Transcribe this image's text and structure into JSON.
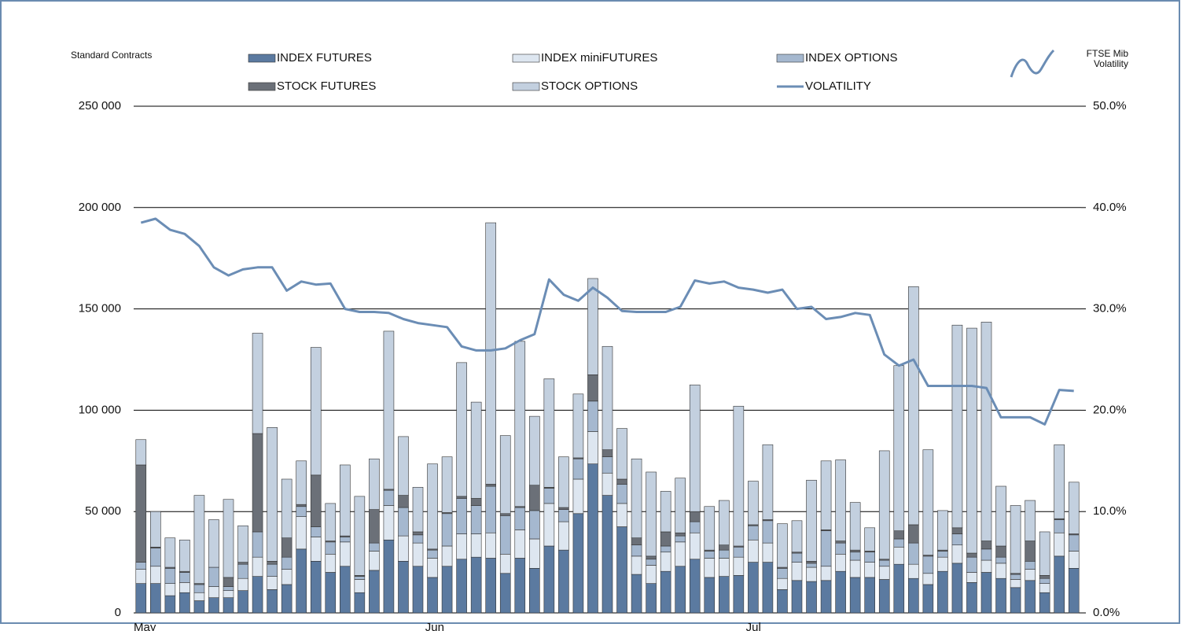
{
  "chart_data": {
    "type": "bar",
    "stacked": true,
    "y_label": "Standard Contracts",
    "y2_label": "FTSE Mib Volatility",
    "categories": [
      "May",
      null,
      null,
      null,
      null,
      null,
      null,
      null,
      null,
      null,
      null,
      null,
      null,
      null,
      null,
      null,
      null,
      null,
      null,
      null,
      "Jun",
      null,
      null,
      null,
      null,
      null,
      null,
      null,
      null,
      null,
      null,
      null,
      null,
      null,
      null,
      null,
      null,
      null,
      null,
      null,
      null,
      null,
      "Jul",
      null,
      null,
      null,
      null,
      null,
      null,
      null,
      null,
      null,
      null,
      null,
      null,
      null,
      null,
      null,
      null,
      null,
      null,
      null,
      null,
      null,
      null
    ],
    "ylim": [
      0,
      250000
    ],
    "yticks": [
      0,
      {
        "value": 50000,
        "label": "50 000"
      },
      {
        "value": 100000,
        "label": "100 000"
      },
      {
        "value": 150000,
        "label": "150 000"
      },
      {
        "value": 200000,
        "label": "200 000"
      },
      {
        "value": 250000,
        "label": "250 000"
      }
    ],
    "y2lim": [
      0,
      50
    ],
    "y2ticks": [
      {
        "value": 0,
        "label": "0.0%"
      },
      {
        "value": 10,
        "label": "10.0%"
      },
      {
        "value": 20,
        "label": "20.0%"
      },
      {
        "value": 30,
        "label": "30.0%"
      },
      {
        "value": 40,
        "label": "40.0%"
      },
      {
        "value": 50,
        "label": "50.0%"
      }
    ],
    "grid": true,
    "series": [
      {
        "name": "INDEX FUTURES",
        "type": "bar",
        "color": "#5b7aa0",
        "values": [
          14500,
          14500,
          8500,
          10000,
          6000,
          7500,
          7500,
          11000,
          18000,
          11500,
          14000,
          31500,
          25500,
          20000,
          23000,
          10000,
          21000,
          36000,
          25500,
          23000,
          17500,
          23000,
          26500,
          27500,
          27000,
          19500,
          27000,
          22000,
          33000,
          31000,
          49000,
          73500,
          58000,
          42500,
          19000,
          14500,
          20500,
          23000,
          26500,
          17500,
          18000,
          18500,
          25000,
          25000,
          11500,
          16000,
          15500,
          16000,
          20500,
          17500,
          17500,
          16500,
          24000,
          17000,
          14000,
          20500,
          24500,
          15000,
          20000,
          17000,
          12500,
          16000,
          10000,
          28000,
          22000
        ]
      },
      {
        "name": "INDEX miniFUTURES",
        "type": "bar",
        "color": "#dde6f0",
        "values": [
          7000,
          8500,
          6000,
          5000,
          4000,
          5500,
          3500,
          6000,
          9500,
          6500,
          7500,
          16000,
          12000,
          9000,
          12000,
          6500,
          9500,
          17000,
          12500,
          11500,
          9500,
          10000,
          12500,
          11500,
          12500,
          9500,
          14000,
          14500,
          21000,
          14000,
          17000,
          16000,
          11000,
          11500,
          9000,
          9000,
          9500,
          12000,
          13000,
          9500,
          9000,
          9000,
          11000,
          9500,
          5500,
          9000,
          7000,
          7000,
          8500,
          8500,
          7500,
          6500,
          8500,
          7000,
          5500,
          7000,
          9000,
          5000,
          6000,
          7500,
          4000,
          5500,
          4500,
          11500,
          8500
        ]
      },
      {
        "name": "INDEX OPTIONS",
        "type": "bar",
        "color": "#a5b8cf",
        "values": [
          3500,
          9000,
          7500,
          5000,
          4000,
          9500,
          2000,
          7000,
          12500,
          6000,
          6000,
          5000,
          5000,
          6000,
          2500,
          1500,
          4000,
          7500,
          14000,
          4000,
          4000,
          16000,
          17500,
          14000,
          23000,
          19000,
          11000,
          14000,
          7500,
          6000,
          10000,
          15000,
          8000,
          9500,
          5500,
          3000,
          3000,
          3000,
          5500,
          3500,
          4000,
          5000,
          7000,
          11000,
          5000,
          4500,
          2000,
          17500,
          5500,
          4000,
          5000,
          3000,
          4000,
          10500,
          8500,
          3000,
          5500,
          7500,
          5500,
          3000,
          2500,
          4000,
          2500,
          6500,
          8000
        ]
      },
      {
        "name": "STOCK FUTURES",
        "type": "bar",
        "color": "#6b7078",
        "values": [
          48000,
          500,
          500,
          500,
          500,
          0,
          4500,
          1000,
          48500,
          1500,
          9500,
          1000,
          25500,
          500,
          500,
          500,
          16500,
          500,
          6000,
          1500,
          500,
          500,
          1000,
          3500,
          1000,
          1000,
          500,
          12500,
          500,
          1000,
          500,
          13000,
          3500,
          2500,
          3500,
          1500,
          7000,
          1500,
          5000,
          500,
          2500,
          500,
          500,
          500,
          500,
          500,
          1000,
          500,
          1000,
          1000,
          500,
          500,
          4000,
          9000,
          500,
          500,
          3000,
          2000,
          4000,
          5500,
          500,
          10000,
          1500,
          500,
          500
        ]
      },
      {
        "name": "STOCK OPTIONS",
        "type": "bar",
        "color": "#c3d0df",
        "values": [
          12500,
          17500,
          14500,
          15500,
          43500,
          23500,
          38500,
          18000,
          49500,
          66000,
          29000,
          21500,
          63000,
          18500,
          35000,
          39000,
          25000,
          78000,
          29000,
          22000,
          42000,
          27500,
          66000,
          47500,
          129000,
          38500,
          81500,
          34000,
          53500,
          25000,
          31500,
          47500,
          51000,
          25000,
          39000,
          41500,
          20000,
          27000,
          62500,
          21500,
          22000,
          69000,
          21500,
          37000,
          21500,
          15500,
          40000,
          34000,
          40000,
          23500,
          11500,
          53500,
          81500,
          117500,
          52000,
          19500,
          100000,
          111000,
          108000,
          29500,
          33500,
          20000,
          21500,
          36500,
          25500
        ]
      },
      {
        "name": "VOLATILITY",
        "type": "line",
        "axis": "y2",
        "color": "#6b8db5",
        "values": [
          38.5,
          38.9,
          37.8,
          37.4,
          36.2,
          34.1,
          33.3,
          33.9,
          34.1,
          34.1,
          31.8,
          32.7,
          32.4,
          32.5,
          30.0,
          29.7,
          29.7,
          29.6,
          29.0,
          28.6,
          28.4,
          28.2,
          26.3,
          25.9,
          25.9,
          26.1,
          26.9,
          27.5,
          32.9,
          31.4,
          30.8,
          32.1,
          31.1,
          29.8,
          29.7,
          29.7,
          29.7,
          30.2,
          32.8,
          32.5,
          32.7,
          32.1,
          31.9,
          31.6,
          31.9,
          30.0,
          30.2,
          29.0,
          29.2,
          29.6,
          29.4,
          25.5,
          24.4,
          25.0,
          22.4,
          22.4,
          22.4,
          22.4,
          22.2,
          19.3,
          19.3,
          19.3,
          18.6,
          22.0,
          21.9
        ]
      }
    ]
  }
}
